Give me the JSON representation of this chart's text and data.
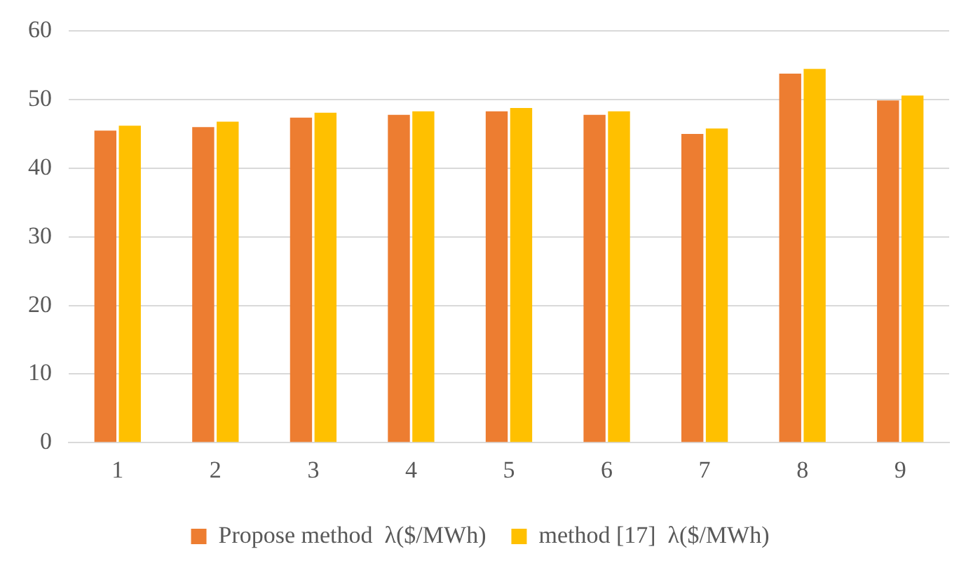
{
  "chart_data": {
    "type": "bar",
    "categories": [
      "1",
      "2",
      "3",
      "4",
      "5",
      "6",
      "7",
      "8",
      "9"
    ],
    "series": [
      {
        "name": "Propose method  λ($/MWh)",
        "color": "#ed7d31",
        "values": [
          45.5,
          46.0,
          47.4,
          47.8,
          48.3,
          47.8,
          45.0,
          53.8,
          49.9
        ]
      },
      {
        "name": "method [17]  λ($/MWh)",
        "color": "#ffc000",
        "values": [
          46.2,
          46.8,
          48.1,
          48.3,
          48.8,
          48.3,
          45.8,
          54.5,
          50.6
        ]
      }
    ],
    "ylim": [
      0,
      60
    ],
    "yticks": [
      0,
      10,
      20,
      30,
      40,
      50,
      60
    ],
    "grid": "y",
    "legend": "bottom"
  }
}
